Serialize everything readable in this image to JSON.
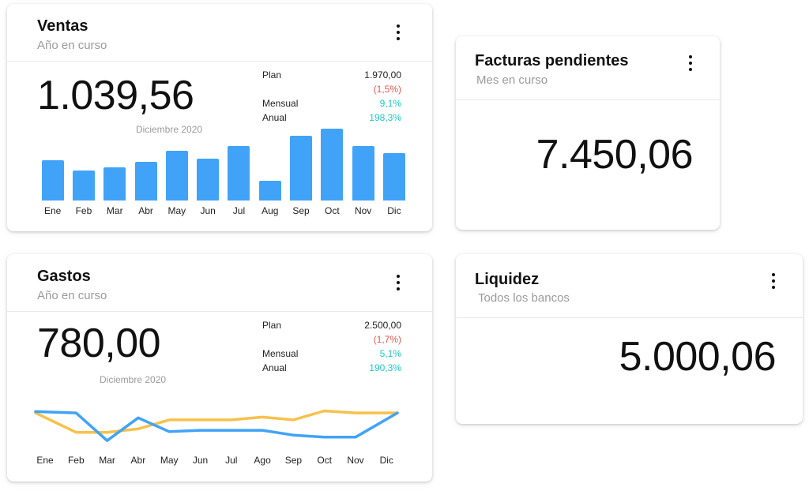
{
  "ventas": {
    "title": "Ventas",
    "subtitle": "Año en curso",
    "value": "1.039,56",
    "period": "Diciembre 2020",
    "stats": [
      {
        "label": "Plan",
        "value": "1.970,00",
        "tone": "dark"
      },
      {
        "label": "",
        "value": "(1,5%)",
        "tone": "red"
      },
      {
        "label": "Mensual",
        "value": "9,1%",
        "tone": "teal"
      },
      {
        "label": "Anual",
        "value": "198,3%",
        "tone": "teal"
      }
    ]
  },
  "facturas": {
    "title": "Facturas pendientes",
    "subtitle": "Mes en curso",
    "value": "7.450,06"
  },
  "gastos": {
    "title": "Gastos",
    "subtitle": "Año en curso",
    "value": "780,00",
    "period": "Diciembre 2020",
    "stats": [
      {
        "label": "Plan",
        "value": "2.500,00",
        "tone": "dark"
      },
      {
        "label": "",
        "value": "(1,7%)",
        "tone": "red"
      },
      {
        "label": "Mensual",
        "value": "5,1%",
        "tone": "teal"
      },
      {
        "label": "Anual",
        "value": "190,3%",
        "tone": "teal"
      }
    ]
  },
  "liquidez": {
    "title": "Liquidez",
    "subtitle": "Todos los bancos",
    "value": "5.000,06"
  },
  "colors": {
    "bar": "#41a3f7",
    "line_blue": "#41a3f7",
    "line_yellow": "#f7c14b",
    "negative": "#e8574e",
    "positive": "#1ec9c9"
  },
  "chart_data": [
    {
      "type": "bar",
      "categories": [
        "Ene",
        "Feb",
        "Mar",
        "Abr",
        "May",
        "Jun",
        "Jul",
        "Aug",
        "Sep",
        "Oct",
        "Nov",
        "Dic"
      ],
      "values": [
        55,
        41,
        46,
        53,
        68,
        58,
        75,
        27,
        89,
        99,
        75,
        65
      ],
      "ylim": [
        0,
        100
      ]
    },
    {
      "type": "line",
      "categories": [
        "Ene",
        "Feb",
        "Mar",
        "Abr",
        "May",
        "Jun",
        "Jul",
        "Ago",
        "Sep",
        "Oct",
        "Nov",
        "Dic"
      ],
      "ylim": [
        0,
        100
      ],
      "series": [
        {
          "values": [
            52,
            50,
            10,
            43,
            23,
            25,
            25,
            25,
            18,
            15,
            15,
            50
          ]
        },
        {
          "values": [
            50,
            22,
            22,
            27,
            40,
            40,
            40,
            44,
            40,
            53,
            50,
            50
          ]
        }
      ]
    }
  ]
}
